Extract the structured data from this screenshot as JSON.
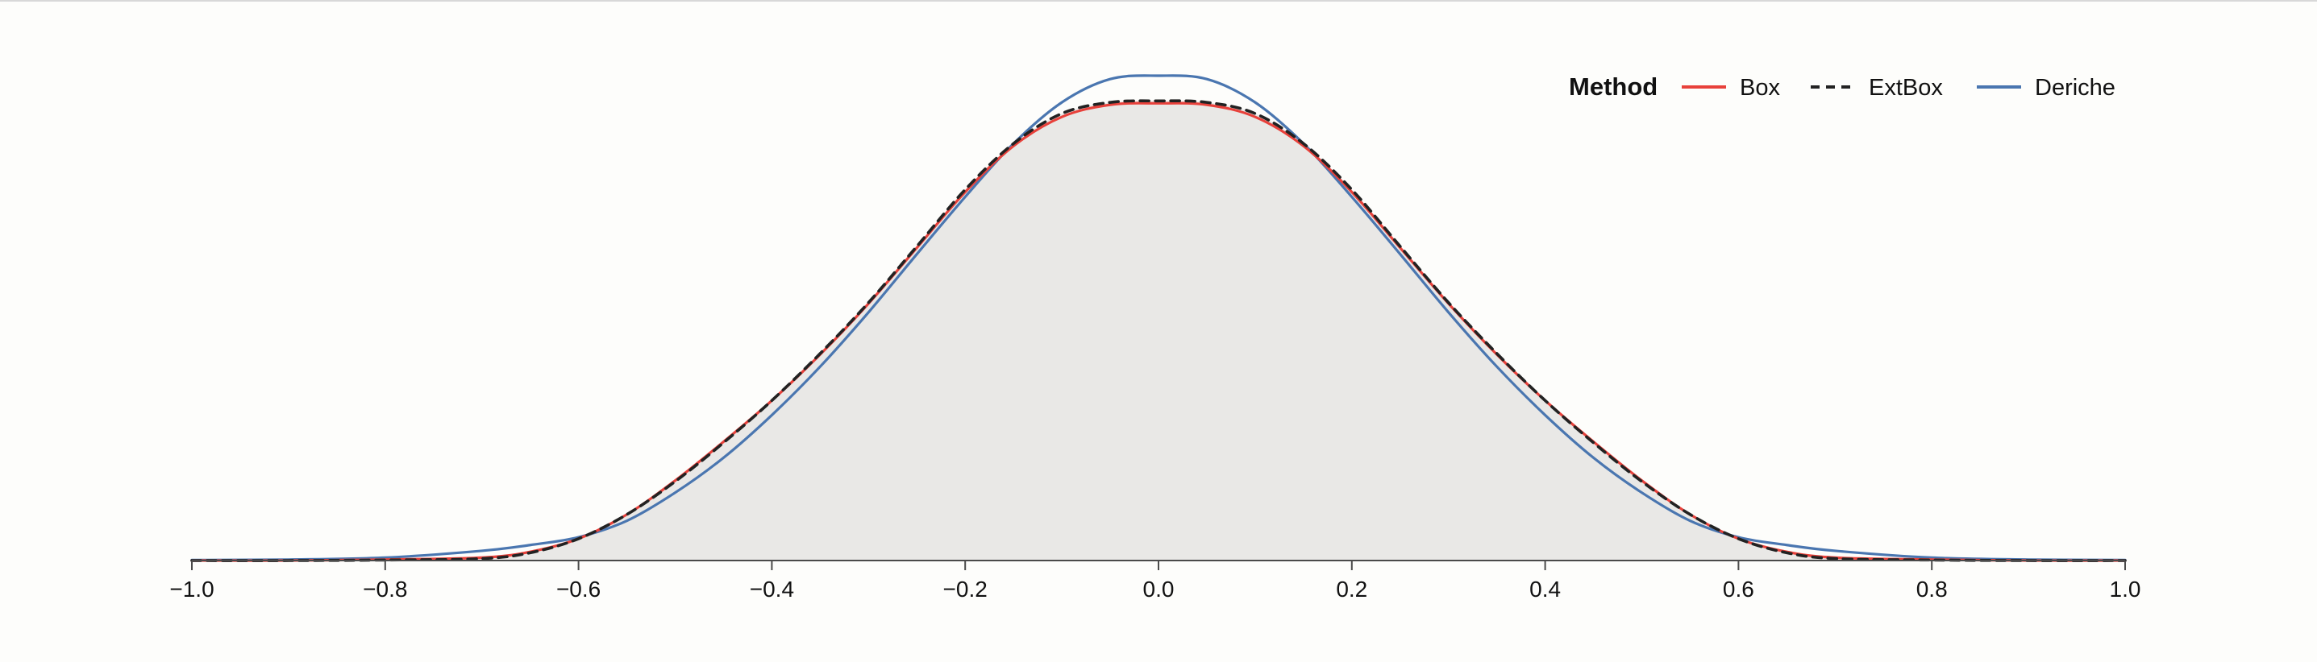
{
  "chart_data": {
    "type": "line",
    "title": "",
    "xlabel": "",
    "ylabel": "",
    "xlim": [
      -1.0,
      1.0
    ],
    "ylim": [
      0,
      1.0
    ],
    "x_ticks": [
      -1.0,
      -0.8,
      -0.6,
      -0.4,
      -0.2,
      0.0,
      0.2,
      0.4,
      0.6,
      0.8,
      1.0
    ],
    "x_tick_labels": [
      "−1.0",
      "−0.8",
      "−0.6",
      "−0.4",
      "−0.2",
      "0.0",
      "0.2",
      "0.4",
      "0.6",
      "0.8",
      "1.0"
    ],
    "grid": false,
    "legend": {
      "title": "Method",
      "placement": "top-right",
      "entries": [
        "Box",
        "ExtBox",
        "Deriche"
      ]
    },
    "x": [
      -1.0,
      -0.9,
      -0.8,
      -0.7,
      -0.65,
      -0.6,
      -0.55,
      -0.5,
      -0.45,
      -0.4,
      -0.35,
      -0.3,
      -0.25,
      -0.2,
      -0.15,
      -0.1,
      -0.05,
      0.0,
      0.05,
      0.1,
      0.15,
      0.2,
      0.25,
      0.3,
      0.35,
      0.4,
      0.45,
      0.5,
      0.55,
      0.6,
      0.65,
      0.7,
      0.8,
      0.9,
      1.0
    ],
    "series": [
      {
        "name": "Box",
        "color": "#e8413b",
        "dash": "solid",
        "values": [
          0.0,
          0.0,
          0.002,
          0.006,
          0.018,
          0.045,
          0.095,
          0.165,
          0.245,
          0.33,
          0.425,
          0.53,
          0.645,
          0.76,
          0.855,
          0.915,
          0.94,
          0.943,
          0.94,
          0.915,
          0.855,
          0.76,
          0.645,
          0.53,
          0.425,
          0.33,
          0.245,
          0.165,
          0.095,
          0.045,
          0.018,
          0.006,
          0.002,
          0.0,
          0.0
        ]
      },
      {
        "name": "ExtBox",
        "color": "#222222",
        "dash": "dashed",
        "values": [
          0.0,
          0.0,
          0.001,
          0.004,
          0.016,
          0.045,
          0.095,
          0.163,
          0.243,
          0.33,
          0.427,
          0.532,
          0.648,
          0.765,
          0.86,
          0.922,
          0.945,
          0.948,
          0.945,
          0.922,
          0.86,
          0.765,
          0.648,
          0.532,
          0.427,
          0.33,
          0.243,
          0.163,
          0.095,
          0.045,
          0.016,
          0.004,
          0.001,
          0.0,
          0.0
        ]
      },
      {
        "name": "Deriche",
        "color": "#4a76b0",
        "dash": "solid",
        "values": [
          0.001,
          0.002,
          0.006,
          0.02,
          0.032,
          0.048,
          0.082,
          0.14,
          0.212,
          0.3,
          0.4,
          0.512,
          0.632,
          0.75,
          0.86,
          0.945,
          0.993,
          1.0,
          0.993,
          0.945,
          0.86,
          0.75,
          0.632,
          0.512,
          0.4,
          0.3,
          0.212,
          0.14,
          0.082,
          0.048,
          0.032,
          0.02,
          0.006,
          0.002,
          0.001
        ]
      }
    ],
    "area_fill": "#e9e8e6"
  }
}
